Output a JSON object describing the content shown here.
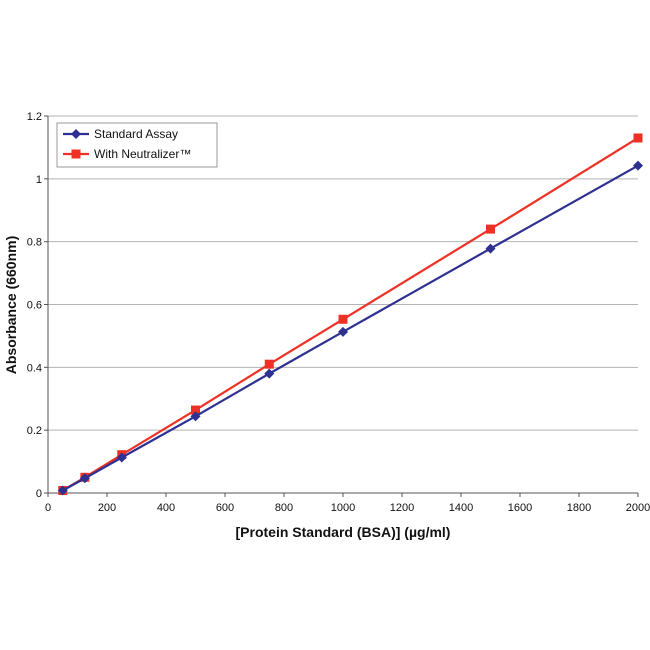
{
  "chart_data": {
    "type": "line",
    "xlabel": "[Protein Standard (BSA)] (µg/ml)",
    "ylabel": "Absorbance (660nm)",
    "xlim": [
      0,
      2000
    ],
    "ylim": [
      0,
      1.2
    ],
    "x_ticks": [
      "0",
      "200",
      "400",
      "600",
      "800",
      "1000",
      "1200",
      "1400",
      "1600",
      "1800",
      "2000"
    ],
    "y_ticks": [
      "0",
      "0.2",
      "0.4",
      "0.6",
      "0.8",
      "1",
      "1.2"
    ],
    "grid": "horizontal",
    "legend_position": "top-left",
    "series": [
      {
        "name": "Standard Assay",
        "color": "#2e3192",
        "marker": "diamond",
        "x": [
          50,
          125,
          250,
          500,
          750,
          1000,
          1500,
          2000
        ],
        "y": [
          0.008,
          0.047,
          0.113,
          0.244,
          0.38,
          0.513,
          0.778,
          1.042
        ]
      },
      {
        "name": "With Neutralizer™",
        "color": "#ee3124",
        "marker": "square",
        "x": [
          50,
          125,
          250,
          500,
          750,
          1000,
          1500,
          2000
        ],
        "y": [
          0.008,
          0.05,
          0.122,
          0.264,
          0.41,
          0.553,
          0.84,
          1.13
        ]
      }
    ]
  }
}
